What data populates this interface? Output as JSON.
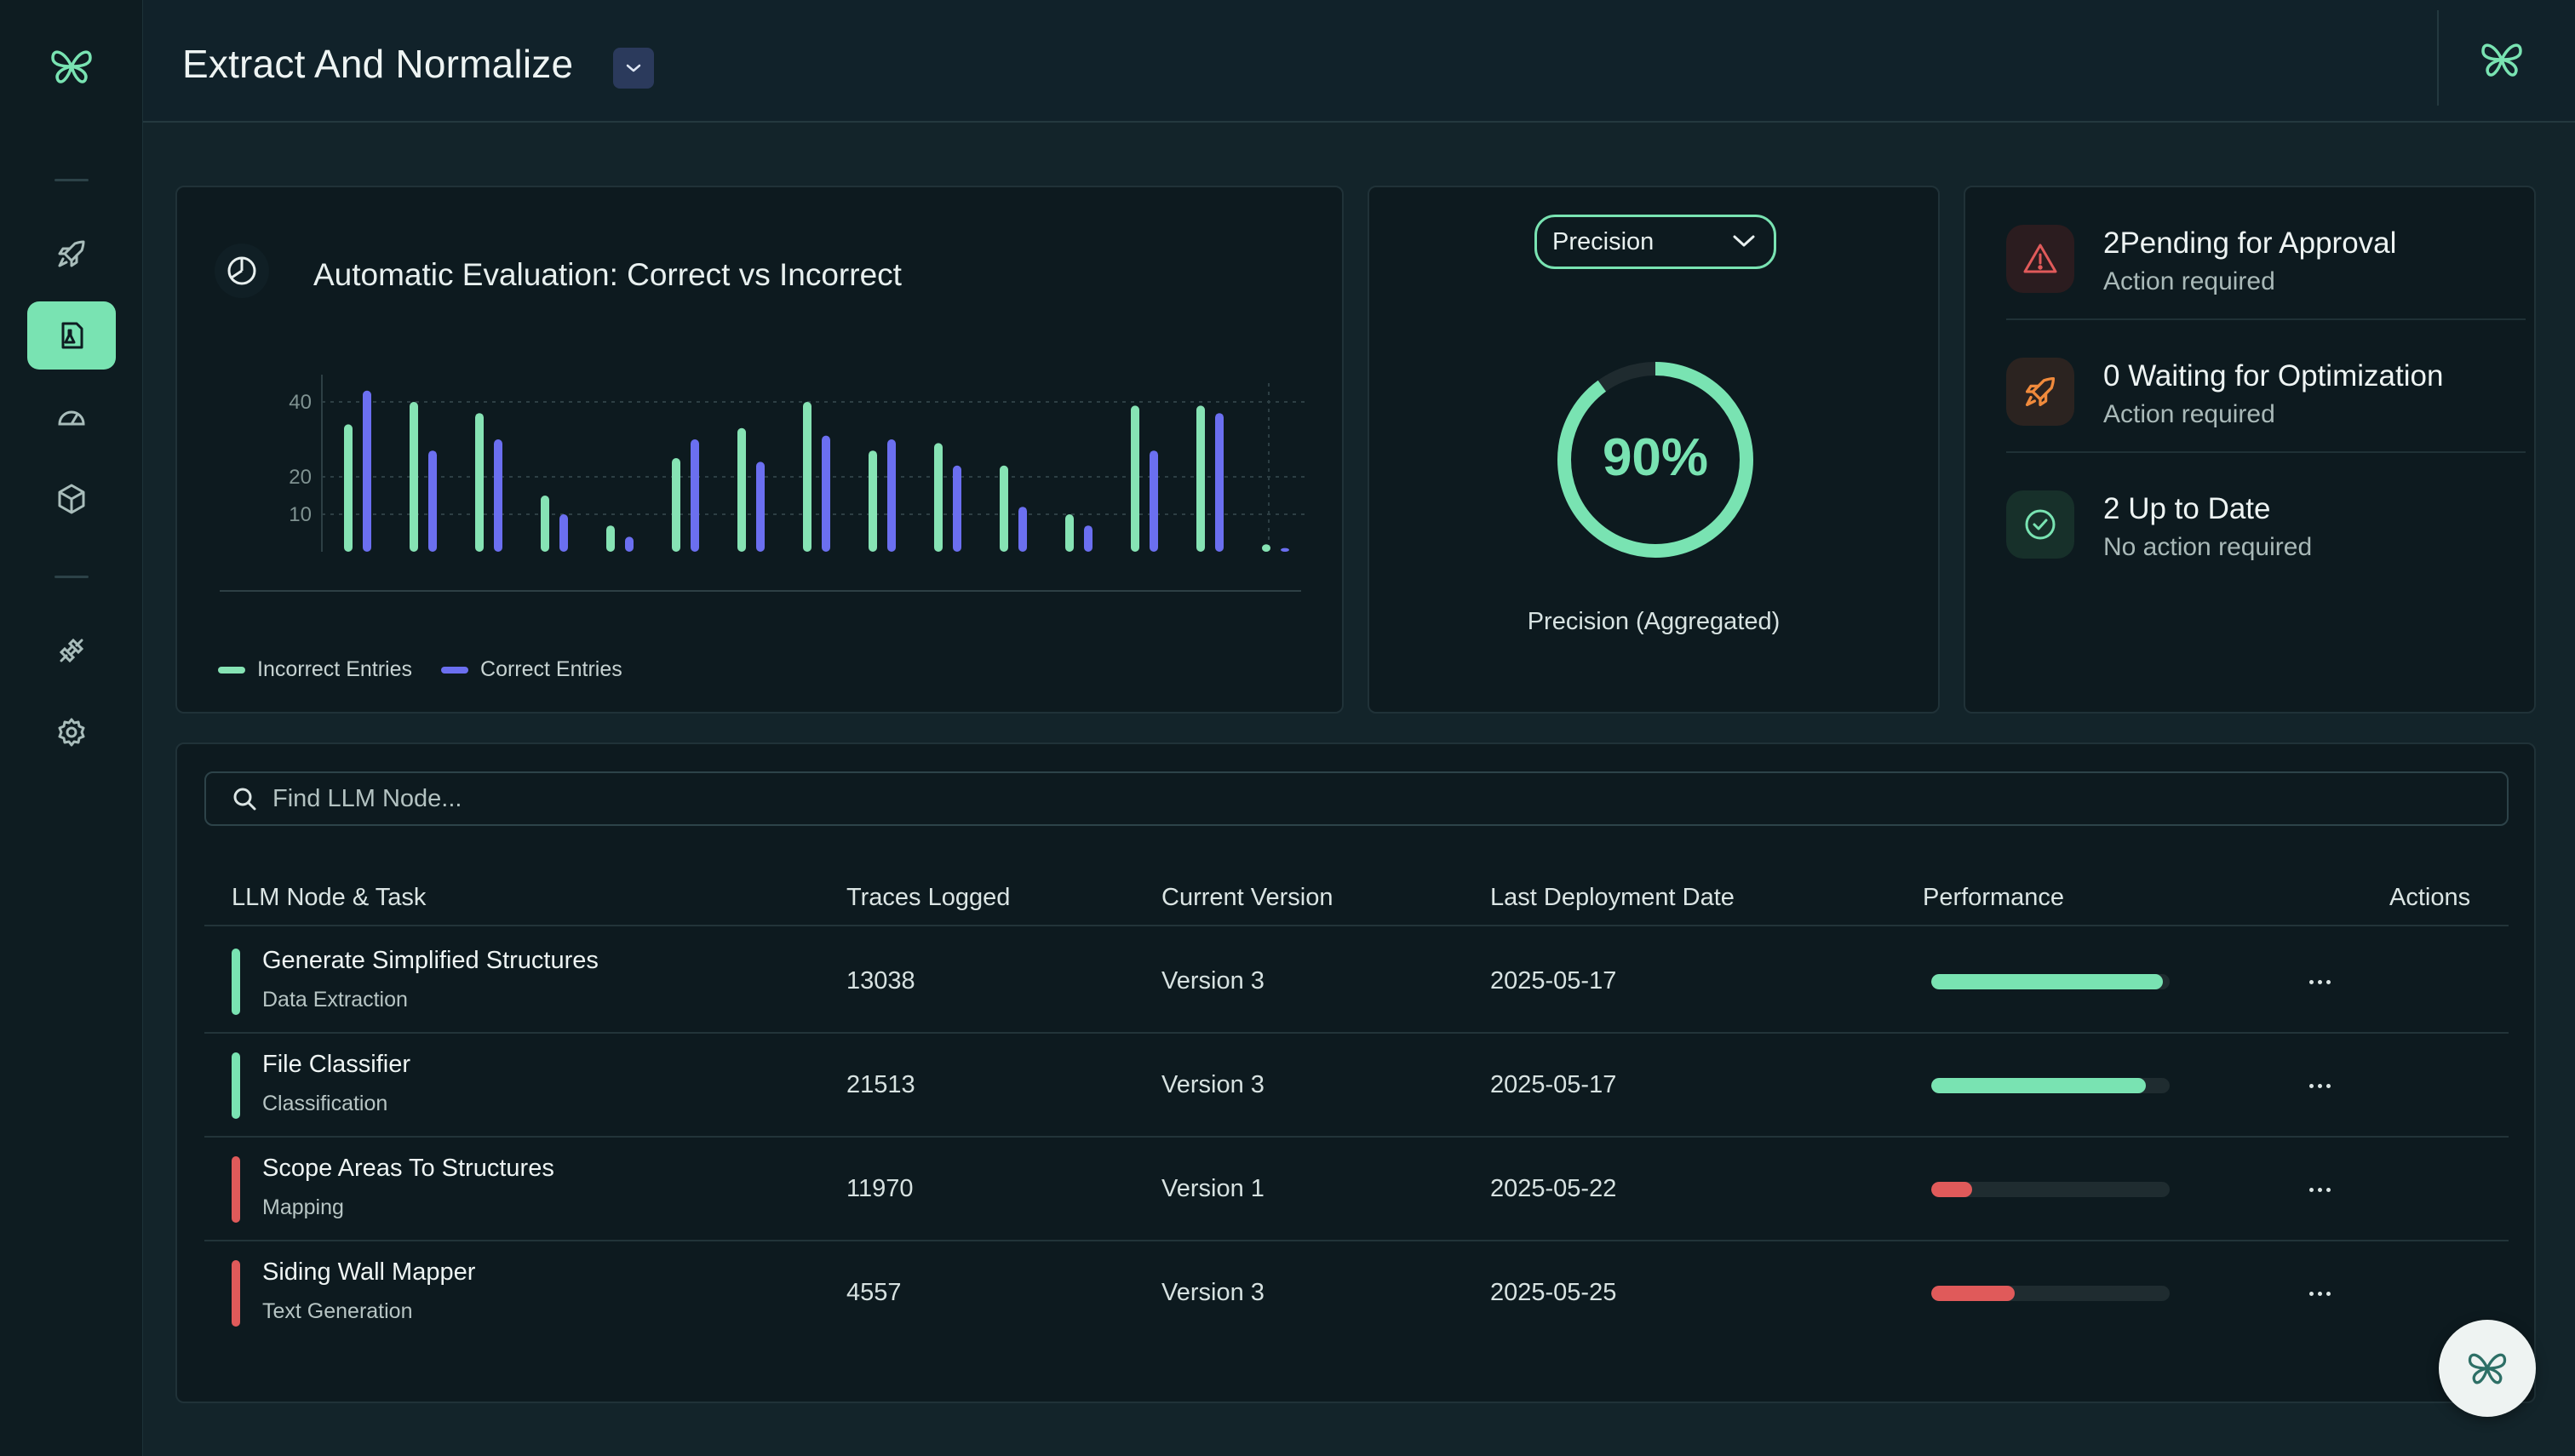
{
  "header": {
    "title": "Extract And Normalize"
  },
  "colors": {
    "accent": "#79e3b2",
    "series_correct": "#6b6ff0",
    "series_incorrect": "#86e3b4",
    "danger": "#e05a5a",
    "warning": "#f08a3c"
  },
  "sidebar": {
    "items": [
      {
        "name": "rocket-icon",
        "active": false
      },
      {
        "name": "flask-document-icon",
        "active": true
      },
      {
        "name": "dashboard-gauge-icon",
        "active": false
      },
      {
        "name": "cube-icon",
        "active": false
      },
      {
        "name": "plug-icon",
        "active": false
      },
      {
        "name": "gear-icon",
        "active": false
      }
    ]
  },
  "evaluation_chart": {
    "title": "Automatic Evaluation: Correct vs Incorrect",
    "legend": {
      "incorrect": "Incorrect Entries",
      "correct": "Correct Entries"
    }
  },
  "chart_data": {
    "type": "bar",
    "title": "Automatic Evaluation: Correct vs Incorrect",
    "ytick_labels": [
      "10",
      "20",
      "40"
    ],
    "yticks": [
      10,
      20,
      40
    ],
    "ylim": [
      0,
      45
    ],
    "grid": true,
    "legend_position": "bottom-left",
    "series": [
      {
        "name": "Incorrect Entries",
        "values": [
          34,
          40,
          37,
          15,
          7,
          25,
          33,
          40,
          27,
          29,
          23,
          10,
          39,
          39,
          2
        ]
      },
      {
        "name": "Correct Entries",
        "values": [
          43,
          27,
          30,
          10,
          4,
          30,
          24,
          31,
          30,
          23,
          12,
          7,
          27,
          37,
          1
        ]
      }
    ]
  },
  "gauge": {
    "selected_metric": "Precision",
    "value_text": "90%",
    "value": 0.9,
    "label": "Precision (Aggregated)"
  },
  "status": {
    "items": [
      {
        "title": "2Pending for Approval",
        "subtitle": "Action required",
        "icon": "warning-triangle-icon"
      },
      {
        "title": "0 Waiting for Optimization",
        "subtitle": "Action required",
        "icon": "rocket-icon"
      },
      {
        "title": "2 Up to Date",
        "subtitle": "No action required",
        "icon": "check-circle-icon"
      }
    ]
  },
  "table": {
    "search_placeholder": "Find LLM Node...",
    "columns": [
      "LLM Node & Task",
      "Traces Logged",
      "Current Version",
      "Last Deployment Date",
      "Performance",
      "Actions"
    ],
    "rows": [
      {
        "name": "Generate Simplified Structures",
        "task": "Data Extraction",
        "traces": "13038",
        "version": "Version 3",
        "date": "2025-05-17",
        "performance": 0.97,
        "status": "good"
      },
      {
        "name": "File Classifier",
        "task": "Classification",
        "traces": "21513",
        "version": "Version 3",
        "date": "2025-05-17",
        "performance": 0.9,
        "status": "good"
      },
      {
        "name": "Scope Areas To Structures",
        "task": "Mapping",
        "traces": "11970",
        "version": "Version 1",
        "date": "2025-05-22",
        "performance": 0.17,
        "status": "bad"
      },
      {
        "name": "Siding Wall Mapper",
        "task": "Text Generation",
        "traces": "4557",
        "version": "Version 3",
        "date": "2025-05-25",
        "performance": 0.35,
        "status": "bad"
      }
    ]
  }
}
